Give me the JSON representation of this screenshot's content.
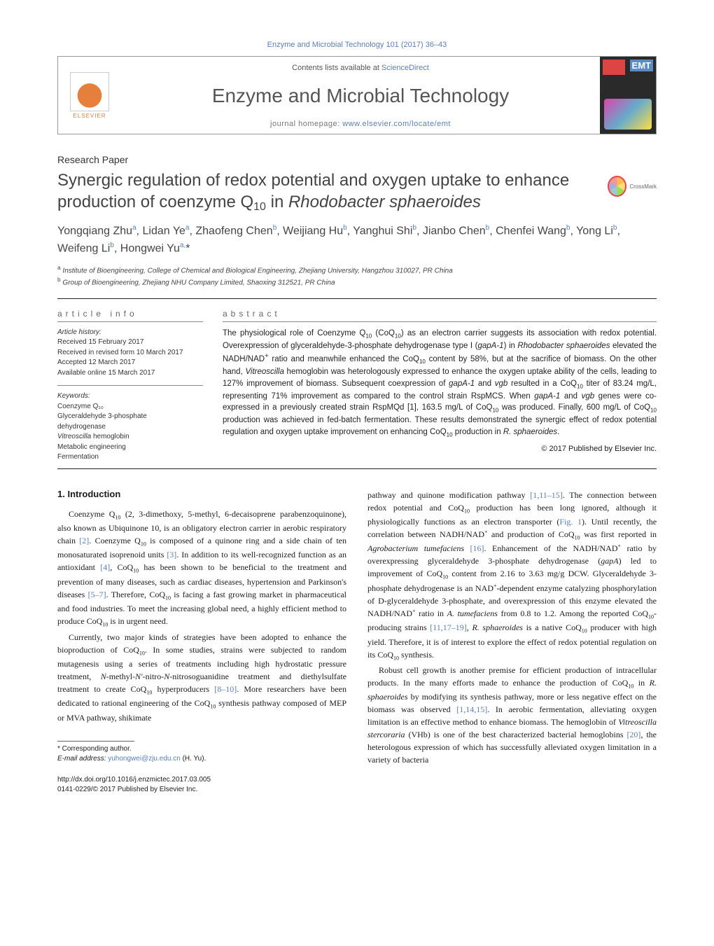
{
  "journal_ref": "Enzyme and Microbial Technology 101 (2017) 36–43",
  "header": {
    "contents_prefix": "Contents lists available at ",
    "contents_link": "ScienceDirect",
    "journal_name": "Enzyme and Microbial Technology",
    "homepage_prefix": "journal homepage: ",
    "homepage_link": "www.elsevier.com/locate/emt",
    "publisher_name": "ELSEVIER",
    "cover_abbr": "EMT"
  },
  "article_type": "Research Paper",
  "crossmark": "CrossMark",
  "title_html": "Synergic regulation of redox potential and oxygen uptake to enhance production of coenzyme Q<sub>10</sub> in <em>Rhodobacter sphaeroides</em>",
  "authors_html": "Yongqiang Zhu<sup>a</sup>, Lidan Ye<sup>a</sup>, Zhaofeng Chen<sup>b</sup>, Weijiang Hu<sup>b</sup>, Yanghui Shi<sup>b</sup>, Jianbo Chen<sup>b</sup>, Chenfei Wang<sup>b</sup>, Yong Li<sup>b</sup>, Weifeng Li<sup>b</sup>, Hongwei Yu<sup>a,</sup>*",
  "affiliations": {
    "a": "Institute of Bioengineering, College of Chemical and Biological Engineering, Zhejiang University, Hangzhou 310027, PR China",
    "b": "Group of Bioengineering, Zhejiang NHU Company Limited, Shaoxing 312521, PR China"
  },
  "article_info": {
    "head": "article info",
    "history_head": "Article history:",
    "received": "Received 15 February 2017",
    "revised": "Received in revised form 10 March 2017",
    "accepted": "Accepted 12 March 2017",
    "online": "Available online 15 March 2017",
    "keywords_head": "Keywords:",
    "keywords": [
      "Coenzyme Q₁₀",
      "Glyceraldehyde 3-phosphate dehydrogenase",
      "Vitreoscilla hemoglobin",
      "Metabolic engineering",
      "Fermentation"
    ]
  },
  "abstract": {
    "head": "abstract",
    "text_html": "The physiological role of Coenzyme Q<sub>10</sub> (CoQ<sub>10</sub>) as an electron carrier suggests its association with redox potential. Overexpression of glyceraldehyde-3-phosphate dehydrogenase type I (<em>gapA-1</em>) in <em>Rhodobacter sphaeroides</em> elevated the NADH/NAD<sup>+</sup> ratio and meanwhile enhanced the CoQ<sub>10</sub> content by 58%, but at the sacrifice of biomass. On the other hand, <em>Vitreoscilla</em> hemoglobin was heterologously expressed to enhance the oxygen uptake ability of the cells, leading to 127% improvement of biomass. Subsequent coexpression of <em>gapA-1</em> and <em>vgb</em> resulted in a CoQ<sub>10</sub> titer of 83.24 mg/L, representing 71% improvement as compared to the control strain RspMCS. When <em>gapA-1</em> and <em>vgb</em> genes were co-expressed in a previously created strain RspMQd [1], 163.5 mg/L of CoQ<sub>10</sub> was produced. Finally, 600 mg/L of CoQ<sub>10</sub> production was achieved in fed-batch fermentation. These results demonstrated the synergic effect of redox potential regulation and oxygen uptake improvement on enhancing CoQ<sub>10</sub> production in <em>R. sphaeroides</em>.",
    "copyright": "© 2017 Published by Elsevier Inc."
  },
  "intro": {
    "head": "1. Introduction",
    "p1_html": "Coenzyme Q<sub>10</sub> (2, 3-dimethoxy, 5-methyl, 6-decaisoprene parabenzoquinone), also known as Ubiquinone 10, is an obligatory electron carrier in aerobic respiratory chain <span class='cite'>[2]</span>. Coenzyme Q<sub>10</sub> is composed of a quinone ring and a side chain of ten monosaturated isoprenoid units <span class='cite'>[3]</span>. In addition to its well-recognized function as an antioxidant <span class='cite'>[4]</span>, CoQ<sub>10</sub> has been shown to be beneficial to the treatment and prevention of many diseases, such as cardiac diseases, hypertension and Parkinson's diseases <span class='cite'>[5–7]</span>. Therefore, CoQ<sub>10</sub> is facing a fast growing market in pharmaceutical and food industries. To meet the increasing global need, a highly efficient method to produce CoQ<sub>10</sub> is in urgent need.",
    "p2_html": "Currently, two major kinds of strategies have been adopted to enhance the bioproduction of CoQ<sub>10</sub>. In some studies, strains were subjected to random mutagenesis using a series of treatments including high hydrostatic pressure treatment, <em>N</em>-methyl-<em>N'</em>-nitro-<em>N</em>-nitrosoguanidine treatment and diethylsulfate treatment to create CoQ<sub>10</sub> hyperproducers <span class='cite'>[8–10]</span>. More researchers have been dedicated to rational engineering of the CoQ<sub>10</sub> synthesis pathway composed of MEP or MVA pathway, shikimate",
    "p3_html": "pathway and quinone modification pathway <span class='cite'>[1,11–15]</span>. The connection between redox potential and CoQ<sub>10</sub> production has been long ignored, although it physiologically functions as an electron transporter (<span class='cite'>Fig. 1</span>). Until recently, the correlation between NADH/NAD<sup>+</sup> and production of CoQ<sub>10</sub> was first reported in <em>Agrobacterium tumefaciens</em> <span class='cite'>[16]</span>. Enhancement of the NADH/NAD<sup>+</sup> ratio by overexpressing glyceraldehyde 3-phosphate dehydrogenase (<em>gapA</em>) led to improvement of CoQ<sub>10</sub> content from 2.16 to 3.63 mg/g DCW. Glyceraldehyde 3-phosphate dehydrogenase is an NAD<sup>+</sup>-dependent enzyme catalyzing phosphorylation of D-glyceraldehyde 3-phosphate, and overexpression of this enzyme elevated the NADH/NAD<sup>+</sup> ratio in <em>A. tumefaciens</em> from 0.8 to 1.2. Among the reported CoQ<sub>10</sub>-producing strains <span class='cite'>[11,17–19]</span>, <em>R. sphaeroides</em> is a native CoQ<sub>10</sub> producer with high yield. Therefore, it is of interest to explore the effect of redox potential regulation on its CoQ<sub>10</sub> synthesis.",
    "p4_html": "Robust cell growth is another premise for efficient production of intracellular products. In the many efforts made to enhance the production of CoQ<sub>10</sub> in <em>R. sphaeroides</em> by modifying its synthesis pathway, more or less negative effect on the biomass was observed <span class='cite'>[1,14,15]</span>. In aerobic fermentation, alleviating oxygen limitation is an effective method to enhance biomass. The hemoglobin of <em>Vitreoscilla stercoraria</em> (VHb) is one of the best characterized bacterial hemoglobins <span class='cite'>[20]</span>, the heterologous expression of which has successfully alleviated oxygen limitation in a variety of bacteria"
  },
  "footer": {
    "corresponding": "* Corresponding author.",
    "email_label": "E-mail address:",
    "email": "yuhongwei@zju.edu.cn",
    "email_name": "(H. Yu).",
    "doi": "http://dx.doi.org/10.1016/j.enzmictec.2017.03.005",
    "issn_copyright": "0141-0229/© 2017 Published by Elsevier Inc."
  },
  "colors": {
    "link": "#5b7fb5",
    "text": "#1a1a1a",
    "accent_orange": "#e67e3c",
    "dark_bg": "#2a2a2a"
  }
}
